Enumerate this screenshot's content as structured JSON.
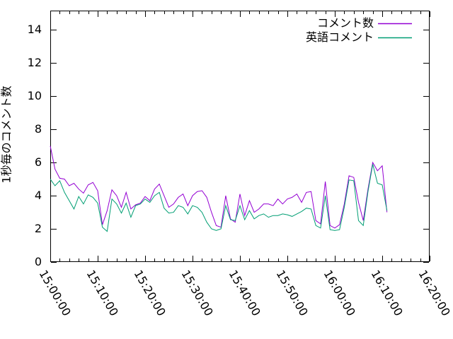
{
  "background": "#FFFFFF",
  "chart_data": {
    "type": "line",
    "title": "",
    "xlabel": "",
    "ylabel": "1秒毎のコメント数",
    "legend_position": "top-right-inside",
    "grid": false,
    "axis_color": "#000000",
    "ylim": [
      0,
      15.16
    ],
    "y_ticks": [
      0,
      2,
      4,
      6,
      8,
      10,
      12,
      14
    ],
    "y_tick_labels": [
      "0",
      "2",
      "4",
      "6",
      "8",
      "10",
      "12",
      "14"
    ],
    "xlim_minutes": [
      0,
      80
    ],
    "x_major_interval_min": 10,
    "x_minor_interval_min": 2,
    "x_tick_labels": [
      "15:00:00",
      "15:10:00",
      "15:20:00",
      "15:30:00",
      "15:40:00",
      "15:50:00",
      "16:00:00",
      "16:10:00",
      "16:20:00"
    ],
    "sample_interval_seconds": 60,
    "x_start_time": "15:00:00",
    "series": [
      {
        "name": "コメント数",
        "color": "#9400D3",
        "start_minute": 0,
        "values": [
          7.0,
          5.6,
          5.05,
          5.0,
          4.6,
          4.75,
          4.4,
          4.15,
          4.65,
          4.8,
          4.3,
          2.25,
          3.1,
          4.35,
          4.0,
          3.3,
          4.2,
          3.2,
          3.45,
          3.55,
          3.95,
          3.7,
          4.4,
          4.7,
          4.0,
          3.3,
          3.5,
          3.9,
          4.1,
          3.4,
          4.0,
          4.25,
          4.3,
          3.9,
          3.0,
          2.2,
          2.1,
          4.0,
          2.6,
          2.4,
          4.1,
          2.8,
          3.7,
          3.0,
          3.2,
          3.5,
          3.5,
          3.4,
          3.8,
          3.5,
          3.8,
          3.9,
          4.1,
          3.6,
          4.2,
          4.25,
          2.5,
          2.3,
          4.85,
          2.2,
          2.05,
          2.25,
          3.5,
          5.2,
          5.1,
          3.6,
          2.5,
          4.4,
          6.0,
          5.5,
          5.8,
          3.0
        ]
      },
      {
        "name": "英語コメント",
        "color": "#009E73",
        "start_minute": 0,
        "values": [
          5.0,
          4.6,
          4.9,
          4.2,
          3.7,
          3.2,
          3.95,
          3.5,
          4.05,
          3.9,
          3.55,
          2.1,
          1.85,
          3.8,
          3.5,
          2.95,
          3.55,
          2.7,
          3.4,
          3.5,
          3.8,
          3.6,
          4.0,
          4.2,
          3.25,
          2.95,
          3.0,
          3.4,
          3.3,
          2.9,
          3.4,
          3.3,
          3.0,
          2.4,
          2.0,
          1.9,
          2.0,
          3.4,
          2.55,
          2.5,
          3.4,
          2.55,
          3.1,
          2.6,
          2.8,
          2.9,
          2.7,
          2.8,
          2.8,
          2.9,
          2.85,
          2.75,
          2.9,
          3.05,
          3.25,
          3.2,
          2.2,
          2.05,
          4.0,
          1.95,
          1.9,
          1.95,
          3.3,
          4.95,
          4.9,
          2.5,
          2.2,
          4.25,
          5.9,
          4.75,
          4.65,
          3.1
        ]
      }
    ]
  }
}
